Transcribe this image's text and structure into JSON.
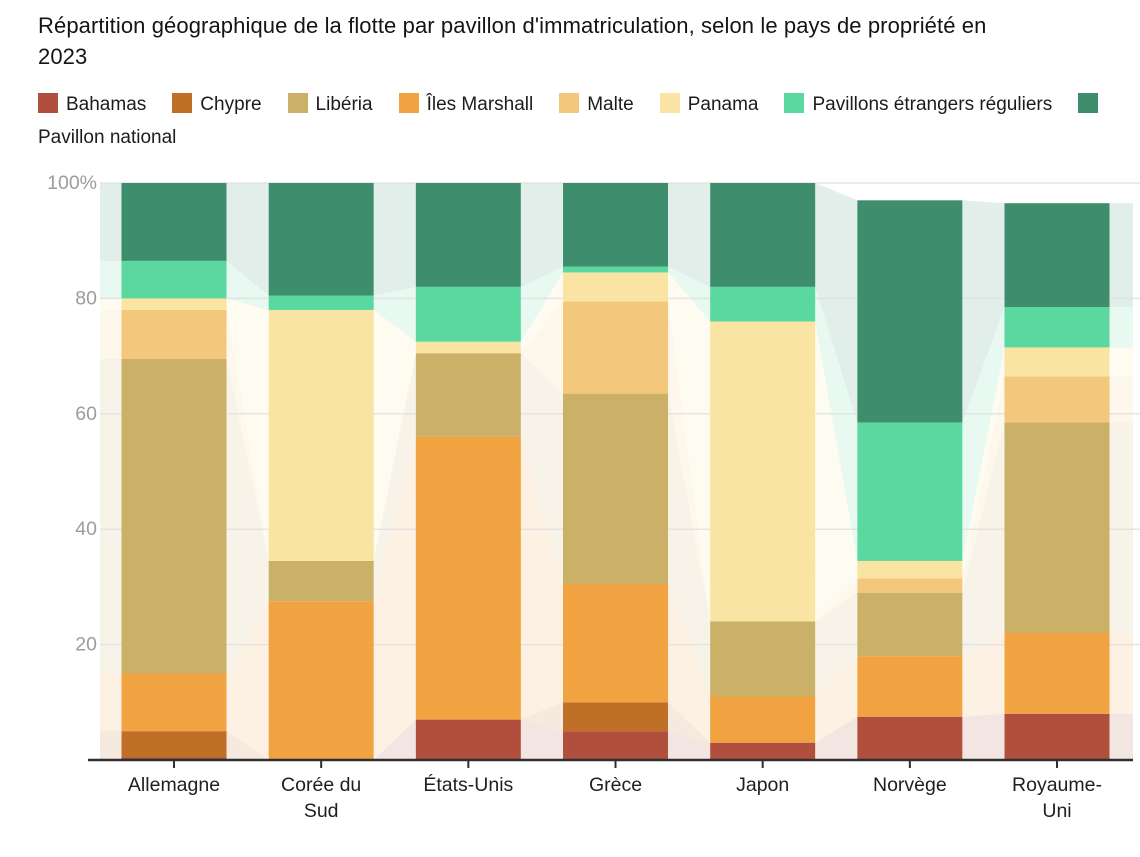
{
  "title": "Répartition géographique de la flotte par pavillon d'immatriculation, selon le pays de propriété en 2023",
  "legend": {
    "items": [
      {
        "label": "Bahamas",
        "color": "#b04f3c"
      },
      {
        "label": "Chypre",
        "color": "#c06f27"
      },
      {
        "label": "Libéria",
        "color": "#cbb068"
      },
      {
        "label": "Îles Marshall",
        "color": "#f0a340"
      },
      {
        "label": "Malte",
        "color": "#f3c87d"
      },
      {
        "label": "Panama",
        "color": "#f9e4a4"
      },
      {
        "label": "Pavillons étrangers réguliers",
        "color": "#5bd7a0"
      },
      {
        "label": "Pavillon national",
        "color": "#3e8e6e"
      }
    ]
  },
  "chart_data": {
    "type": "bar",
    "stacked": true,
    "stack_unit": "percent",
    "title": "Répartition géographique de la flotte par pavillon d'immatriculation, selon le pays de propriété en 2023",
    "categories": [
      "Allemagne",
      "Corée du Sud",
      "États-Unis",
      "Grèce",
      "Japon",
      "Norvège",
      "Royaume-Uni"
    ],
    "category_lines": [
      [
        "Allemagne"
      ],
      [
        "Corée du",
        "Sud"
      ],
      [
        "États-Unis"
      ],
      [
        "Grèce"
      ],
      [
        "Japon"
      ],
      [
        "Norvège"
      ],
      [
        "Royaume-",
        "Uni"
      ]
    ],
    "series": [
      {
        "name": "Bahamas",
        "color": "#b04f3c",
        "values": [
          0.5,
          0,
          7,
          5,
          3,
          7.5,
          8
        ]
      },
      {
        "name": "Chypre",
        "color": "#c06f27",
        "values": [
          4.5,
          0,
          0,
          5,
          0,
          0,
          0
        ]
      },
      {
        "name": "Îles Marshall",
        "color": "#f0a340",
        "values": [
          10,
          27.5,
          49,
          20.5,
          8,
          10.5,
          14
        ]
      },
      {
        "name": "Libéria",
        "color": "#cbb068",
        "values": [
          54.5,
          7,
          14.5,
          33,
          13,
          11,
          36.5
        ]
      },
      {
        "name": "Malte",
        "color": "#f3c87d",
        "values": [
          8.5,
          0,
          0,
          16,
          0,
          2.5,
          8
        ]
      },
      {
        "name": "Panama",
        "color": "#f9e4a4",
        "values": [
          2,
          43.5,
          2,
          5,
          52,
          3,
          5
        ]
      },
      {
        "name": "Pavillons étrangers réguliers",
        "color": "#5bd7a0",
        "values": [
          6.5,
          2.5,
          9.5,
          1,
          6,
          24,
          7
        ]
      },
      {
        "name": "Pavillon national",
        "color": "#3e8e6e",
        "values": [
          13.5,
          19.5,
          18,
          14.5,
          18,
          38.5,
          18
        ]
      }
    ],
    "totals": [
      100,
      100,
      100,
      100,
      100,
      97,
      96.5
    ],
    "legend_order": [
      "Bahamas",
      "Chypre",
      "Libéria",
      "Îles Marshall",
      "Malte",
      "Panama",
      "Pavillons étrangers réguliers",
      "Pavillon national"
    ],
    "xlabel": "",
    "ylabel": "",
    "ylim": [
      0,
      100
    ],
    "y_tick_labels": [
      "20",
      "40",
      "60",
      "80",
      "100%"
    ],
    "grid": true,
    "legend_position": "top",
    "connected_areas": true
  },
  "colors": {
    "axis_line": "#2f2f2f",
    "grid_line": "#e0e0e0",
    "y_tick_text": "#9c9c9c",
    "x_tick_text": "#1f1f1f",
    "background": "#ffffff"
  }
}
